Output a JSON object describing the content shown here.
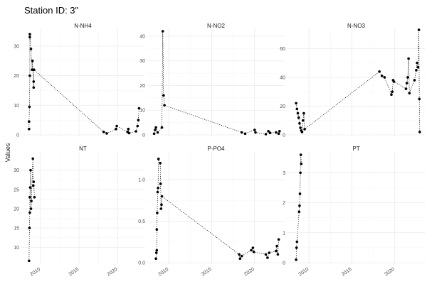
{
  "chart_data": {
    "type": "scatter",
    "title": "Station ID: 3\"",
    "ylabel": "Values",
    "xlabel": "",
    "facet_rows": 2,
    "facet_cols": 3,
    "xlim": [
      2007.5,
      2023.5
    ],
    "x_ticks": [
      2010,
      2015,
      2020
    ],
    "x_tick_labels": [
      "2010",
      "2015",
      "2020"
    ],
    "grid": true,
    "shared_x": true,
    "panels": [
      {
        "name": "N-NH4",
        "ylim": [
          0,
          35
        ],
        "y_ticks": [
          0,
          10,
          20,
          30
        ],
        "points": [
          {
            "x": 2008.5,
            "y": 2
          },
          {
            "x": 2008.5,
            "y": 4.5
          },
          {
            "x": 2008.55,
            "y": 9.5
          },
          {
            "x": 2008.6,
            "y": 20
          },
          {
            "x": 2008.6,
            "y": 33
          },
          {
            "x": 2008.6,
            "y": 34
          },
          {
            "x": 2008.75,
            "y": 29
          },
          {
            "x": 2008.9,
            "y": 22
          },
          {
            "x": 2008.95,
            "y": 25
          },
          {
            "x": 2009.1,
            "y": 16
          },
          {
            "x": 2009.1,
            "y": 18
          },
          {
            "x": 2009.15,
            "y": 22
          },
          {
            "x": 2018.2,
            "y": 1
          },
          {
            "x": 2018.6,
            "y": 0.5
          },
          {
            "x": 2019.8,
            "y": 2
          },
          {
            "x": 2019.9,
            "y": 3
          },
          {
            "x": 2021.3,
            "y": 1
          },
          {
            "x": 2021.4,
            "y": 2
          },
          {
            "x": 2021.5,
            "y": 0.6
          },
          {
            "x": 2022.4,
            "y": 1.2
          },
          {
            "x": 2022.6,
            "y": 3
          },
          {
            "x": 2022.7,
            "y": 5
          },
          {
            "x": 2022.8,
            "y": 9
          }
        ]
      },
      {
        "name": "N-NO2",
        "ylim": [
          0,
          42
        ],
        "y_ticks": [
          0,
          10,
          20,
          30,
          40
        ],
        "points": [
          {
            "x": 2008.3,
            "y": 0.5
          },
          {
            "x": 2008.4,
            "y": 2
          },
          {
            "x": 2008.5,
            "y": 3
          },
          {
            "x": 2008.7,
            "y": 1
          },
          {
            "x": 2009.2,
            "y": 3
          },
          {
            "x": 2009.3,
            "y": 42
          },
          {
            "x": 2009.4,
            "y": 16
          },
          {
            "x": 2009.5,
            "y": 12
          },
          {
            "x": 2018.5,
            "y": 1
          },
          {
            "x": 2018.9,
            "y": 0.5
          },
          {
            "x": 2020.0,
            "y": 2
          },
          {
            "x": 2020.1,
            "y": 1
          },
          {
            "x": 2021.3,
            "y": 0.3
          },
          {
            "x": 2021.6,
            "y": 1.5
          },
          {
            "x": 2021.8,
            "y": 0.8
          },
          {
            "x": 2022.5,
            "y": 1
          },
          {
            "x": 2022.8,
            "y": 0.5
          },
          {
            "x": 2022.9,
            "y": 1.5
          }
        ]
      },
      {
        "name": "N-NO3",
        "ylim": [
          0,
          72
        ],
        "y_ticks": [
          0,
          20,
          40,
          60
        ],
        "points": [
          {
            "x": 2008.5,
            "y": 22
          },
          {
            "x": 2008.6,
            "y": 18
          },
          {
            "x": 2008.7,
            "y": 15
          },
          {
            "x": 2008.8,
            "y": 12
          },
          {
            "x": 2008.9,
            "y": 8
          },
          {
            "x": 2009.0,
            "y": 5
          },
          {
            "x": 2009.1,
            "y": 3
          },
          {
            "x": 2009.2,
            "y": 2
          },
          {
            "x": 2009.3,
            "y": 10
          },
          {
            "x": 2009.4,
            "y": 15
          },
          {
            "x": 2009.5,
            "y": 4
          },
          {
            "x": 2018.2,
            "y": 44
          },
          {
            "x": 2018.5,
            "y": 41
          },
          {
            "x": 2018.8,
            "y": 40
          },
          {
            "x": 2019.6,
            "y": 28
          },
          {
            "x": 2019.7,
            "y": 30
          },
          {
            "x": 2019.8,
            "y": 38
          },
          {
            "x": 2019.9,
            "y": 37
          },
          {
            "x": 2021.3,
            "y": 32
          },
          {
            "x": 2021.4,
            "y": 36
          },
          {
            "x": 2021.5,
            "y": 40
          },
          {
            "x": 2021.6,
            "y": 53
          },
          {
            "x": 2021.7,
            "y": 29
          },
          {
            "x": 2022.3,
            "y": 38
          },
          {
            "x": 2022.5,
            "y": 45
          },
          {
            "x": 2022.6,
            "y": 50
          },
          {
            "x": 2022.7,
            "y": 47
          },
          {
            "x": 2022.8,
            "y": 73
          },
          {
            "x": 2022.85,
            "y": 25
          },
          {
            "x": 2022.9,
            "y": 2
          }
        ]
      },
      {
        "name": "NT",
        "ylim": [
          6,
          34
        ],
        "y_ticks": [
          10,
          15,
          20,
          25,
          30
        ],
        "points": [
          {
            "x": 2008.5,
            "y": 6.5
          },
          {
            "x": 2008.55,
            "y": 15
          },
          {
            "x": 2008.6,
            "y": 19
          },
          {
            "x": 2008.6,
            "y": 23
          },
          {
            "x": 2008.65,
            "y": 25.5
          },
          {
            "x": 2008.7,
            "y": 30
          },
          {
            "x": 2008.75,
            "y": 20
          },
          {
            "x": 2008.8,
            "y": 22
          },
          {
            "x": 2009.0,
            "y": 33
          },
          {
            "x": 2009.05,
            "y": 26
          },
          {
            "x": 2009.1,
            "y": 27
          },
          {
            "x": 2009.2,
            "y": 23
          }
        ]
      },
      {
        "name": "P-PO4",
        "ylim": [
          0,
          1.3
        ],
        "y_ticks": [
          0.0,
          0.5,
          1.0
        ],
        "y_tick_labels": [
          "0.0",
          "0.5",
          "1.0"
        ],
        "points": [
          {
            "x": 2008.5,
            "y": 0.05
          },
          {
            "x": 2008.55,
            "y": 0.12
          },
          {
            "x": 2008.6,
            "y": 0.15
          },
          {
            "x": 2008.6,
            "y": 0.4
          },
          {
            "x": 2008.65,
            "y": 0.6
          },
          {
            "x": 2008.7,
            "y": 0.85
          },
          {
            "x": 2008.75,
            "y": 0.9
          },
          {
            "x": 2008.8,
            "y": 1.25
          },
          {
            "x": 2009.0,
            "y": 1.2
          },
          {
            "x": 2009.05,
            "y": 0.95
          },
          {
            "x": 2009.1,
            "y": 0.65
          },
          {
            "x": 2009.15,
            "y": 0.7
          },
          {
            "x": 2009.2,
            "y": 0.8
          },
          {
            "x": 2018.2,
            "y": 0.1
          },
          {
            "x": 2018.3,
            "y": 0.05
          },
          {
            "x": 2018.5,
            "y": 0.08
          },
          {
            "x": 2019.6,
            "y": 0.15
          },
          {
            "x": 2019.8,
            "y": 0.18
          },
          {
            "x": 2019.9,
            "y": 0.13
          },
          {
            "x": 2021.3,
            "y": 0.1
          },
          {
            "x": 2021.5,
            "y": 0.06
          },
          {
            "x": 2021.7,
            "y": 0.12
          },
          {
            "x": 2022.5,
            "y": 0.14
          },
          {
            "x": 2022.6,
            "y": 0.2
          },
          {
            "x": 2022.7,
            "y": 0.1
          },
          {
            "x": 2022.8,
            "y": 0.28
          }
        ]
      },
      {
        "name": "PT",
        "ylim": [
          0,
          3.6
        ],
        "y_ticks": [
          0,
          1,
          2,
          3
        ],
        "points": [
          {
            "x": 2008.5,
            "y": 0.1
          },
          {
            "x": 2008.55,
            "y": 0.5
          },
          {
            "x": 2008.6,
            "y": 0.7
          },
          {
            "x": 2008.85,
            "y": 1.7
          },
          {
            "x": 2008.9,
            "y": 1.9
          },
          {
            "x": 2008.95,
            "y": 2.3
          },
          {
            "x": 2009.0,
            "y": 3.0
          },
          {
            "x": 2009.05,
            "y": 3.6
          },
          {
            "x": 2009.1,
            "y": 3.3
          }
        ]
      }
    ]
  }
}
